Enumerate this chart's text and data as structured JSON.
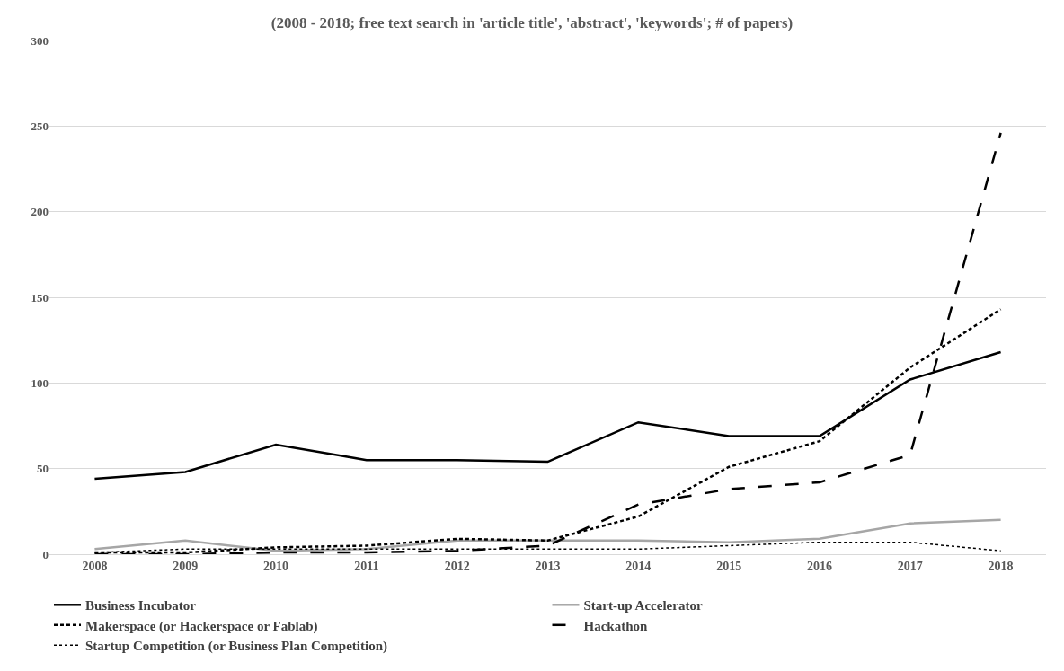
{
  "chart_data": {
    "type": "line",
    "title": "(2008 - 2018; free text search in 'article title', 'abstract', 'keywords'; # of papers)",
    "categories": [
      "2008",
      "2009",
      "2010",
      "2011",
      "2012",
      "2013",
      "2014",
      "2015",
      "2016",
      "2017",
      "2018"
    ],
    "series": [
      {
        "name": "Business Incubator",
        "color": "#000000",
        "line_style": "solid",
        "values": [
          44,
          48,
          64,
          55,
          55,
          54,
          77,
          69,
          69,
          102,
          118
        ]
      },
      {
        "name": "Start-up Accelerator",
        "color": "#a6a6a6",
        "line_style": "solid",
        "values": [
          3,
          8,
          2,
          3,
          8,
          8,
          8,
          7,
          9,
          18,
          20
        ]
      },
      {
        "name": "Makerspace (or Hackerspace or Fablab)",
        "color": "#000000",
        "line_style": "dashed",
        "values": [
          1,
          1,
          4,
          5,
          9,
          8,
          22,
          51,
          66,
          109,
          143
        ]
      },
      {
        "name": "Hackathon",
        "color": "#000000",
        "line_style": "longdash",
        "values": [
          0,
          0,
          1,
          1,
          2,
          5,
          29,
          38,
          42,
          58,
          246
        ]
      },
      {
        "name": "Startup Competition (or Business Plan Competition)",
        "color": "#000000",
        "line_style": "dotted",
        "values": [
          1,
          3,
          3,
          3,
          3,
          3,
          3,
          5,
          7,
          7,
          2
        ]
      }
    ],
    "ylim": [
      0,
      300
    ],
    "yticks": [
      0,
      50,
      100,
      150,
      200,
      250,
      300
    ],
    "grid": "y",
    "legend": "bottom",
    "marker": "none"
  }
}
